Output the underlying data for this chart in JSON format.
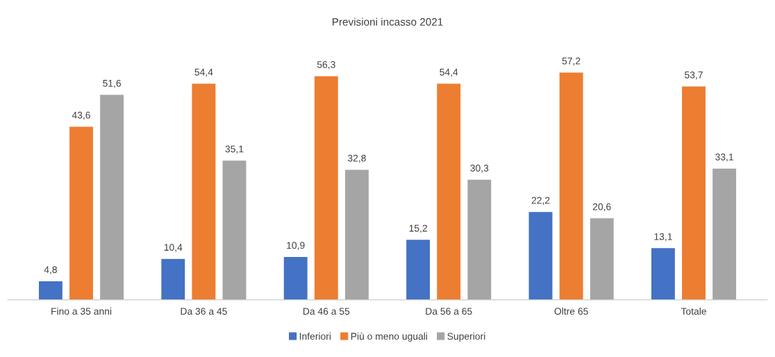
{
  "chart_data": {
    "type": "bar",
    "title": "Previsioni incasso 2021",
    "categories": [
      "Fino a 35 anni",
      "Da 36 a 45",
      "Da 46 a 55",
      "Da 56 a 65",
      "Oltre 65",
      "Totale"
    ],
    "series": [
      {
        "name": "Inferiori",
        "color": "#4472c4",
        "values": [
          4.8,
          10.4,
          10.9,
          15.2,
          22.2,
          13.1
        ],
        "value_labels": [
          "4,8",
          "10,4",
          "10,9",
          "15,2",
          "22,2",
          "13,1"
        ]
      },
      {
        "name": "Più o meno uguali",
        "color": "#ed7d31",
        "values": [
          43.6,
          54.4,
          56.3,
          54.4,
          57.2,
          53.7
        ],
        "value_labels": [
          "43,6",
          "54,4",
          "56,3",
          "54,4",
          "57,2",
          "53,7"
        ]
      },
      {
        "name": "Superiori",
        "color": "#a5a5a5",
        "values": [
          51.6,
          35.1,
          32.8,
          30.3,
          20.6,
          33.1
        ],
        "value_labels": [
          "51,6",
          "35,1",
          "32,8",
          "30,3",
          "20,6",
          "33,1"
        ]
      }
    ],
    "legend": "bottom",
    "grid": false
  }
}
